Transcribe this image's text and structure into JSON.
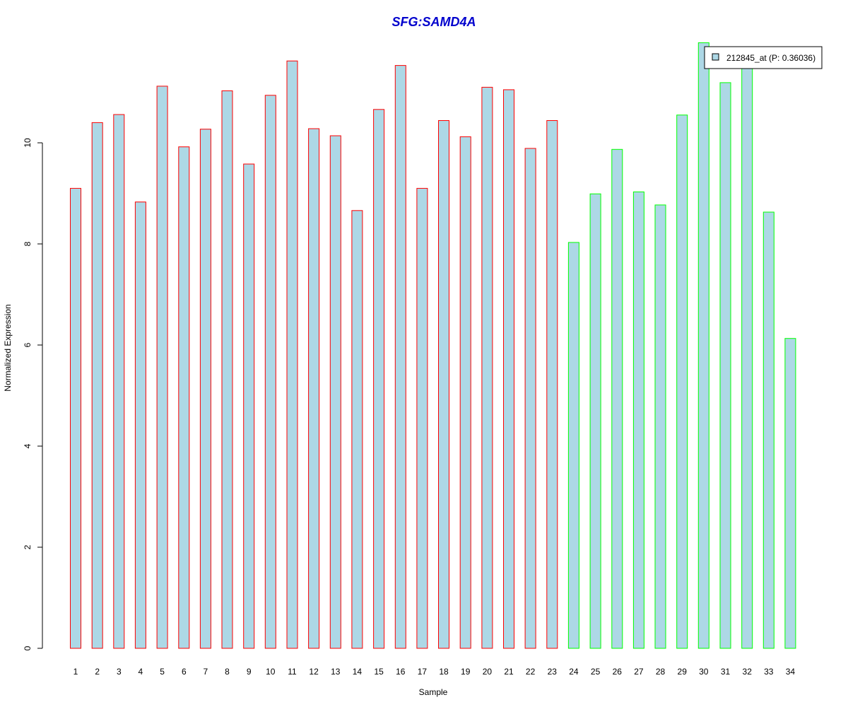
{
  "chart_data": {
    "type": "bar",
    "title": "SFG:SAMD4A",
    "xlabel": "Sample",
    "ylabel": "Normalized Expression",
    "categories": [
      "1",
      "2",
      "3",
      "4",
      "5",
      "6",
      "7",
      "8",
      "9",
      "10",
      "11",
      "12",
      "13",
      "14",
      "15",
      "16",
      "17",
      "18",
      "19",
      "20",
      "21",
      "22",
      "23",
      "24",
      "25",
      "26",
      "27",
      "28",
      "29",
      "30",
      "31",
      "32",
      "33",
      "34"
    ],
    "values": [
      9.1,
      10.4,
      10.56,
      8.83,
      11.12,
      9.92,
      10.27,
      11.03,
      9.58,
      10.94,
      11.62,
      10.28,
      10.14,
      8.66,
      10.66,
      11.53,
      9.1,
      10.44,
      10.12,
      11.1,
      11.05,
      9.89,
      10.44,
      8.03,
      8.99,
      9.87,
      9.03,
      8.77,
      10.55,
      11.98,
      11.19,
      11.6,
      8.63,
      6.13
    ],
    "groups": [
      "red",
      "red",
      "red",
      "red",
      "red",
      "red",
      "red",
      "red",
      "red",
      "red",
      "red",
      "red",
      "red",
      "red",
      "red",
      "red",
      "red",
      "red",
      "red",
      "red",
      "red",
      "red",
      "red",
      "green",
      "green",
      "green",
      "green",
      "green",
      "green",
      "green",
      "green",
      "green",
      "green",
      "green"
    ],
    "y_ticks": [
      "0",
      "2",
      "4",
      "6",
      "8",
      "10"
    ],
    "ylim": [
      0,
      12
    ],
    "legend": {
      "label": "212845_at (P: 0.36036)",
      "placement": "top-right"
    },
    "grid": false,
    "colors": {
      "fill": "#add8e6",
      "group_red": "#ff0000",
      "group_green": "#00ff00",
      "title": "#0000cd",
      "axis": "#000000"
    }
  }
}
